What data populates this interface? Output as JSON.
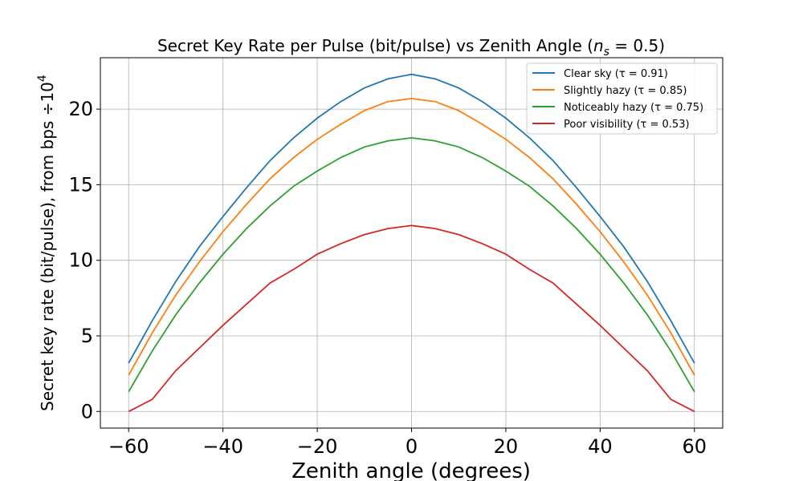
{
  "chart_data": {
    "type": "line",
    "title": "Secret Key Rate per Pulse (bit/pulse) vs Zenith Angle (",
    "title_math_var": "n",
    "title_math_sub": "s",
    "title_math_rest": " = 0.5)",
    "xlabel": "Zenith angle (degrees)",
    "ylabel": "Secret key rate (bit/pulse), from bps ÷10",
    "ylabel_sup": "4",
    "xlim": [
      -66,
      66
    ],
    "ylim": [
      -1.1,
      23.4
    ],
    "xticks": [
      -60,
      -40,
      -20,
      0,
      20,
      40,
      60
    ],
    "xtick_labels": [
      "−60",
      "−40",
      "−20",
      "0",
      "20",
      "40",
      "60"
    ],
    "yticks": [
      0,
      5,
      10,
      15,
      20
    ],
    "ytick_labels": [
      "0",
      "5",
      "10",
      "15",
      "20"
    ],
    "grid": true,
    "legend_position": "top-right",
    "x": [
      -60,
      -55,
      -50,
      -45,
      -40,
      -35,
      -30,
      -25,
      -20,
      -15,
      -10,
      -5,
      0,
      5,
      10,
      15,
      20,
      25,
      30,
      35,
      40,
      45,
      50,
      55,
      60
    ],
    "series": [
      {
        "name": "Clear sky (τ = 0.91)",
        "color": "#1f77b4",
        "values": [
          3.2,
          6.0,
          8.6,
          10.9,
          12.9,
          14.8,
          16.6,
          18.1,
          19.4,
          20.5,
          21.4,
          22.0,
          22.3,
          22.0,
          21.4,
          20.5,
          19.4,
          18.1,
          16.6,
          14.8,
          12.9,
          10.9,
          8.6,
          6.0,
          3.2
        ]
      },
      {
        "name": "Slightly hazy (τ = 0.85)",
        "color": "#ff7f0e",
        "values": [
          2.4,
          5.2,
          7.7,
          9.9,
          11.9,
          13.7,
          15.4,
          16.8,
          18.0,
          19.0,
          19.9,
          20.5,
          20.7,
          20.5,
          19.9,
          19.0,
          18.0,
          16.8,
          15.4,
          13.7,
          11.9,
          9.9,
          7.7,
          5.2,
          2.4
        ]
      },
      {
        "name": "Noticeably hazy (τ = 0.75)",
        "color": "#2ca02c",
        "values": [
          1.3,
          4.0,
          6.4,
          8.5,
          10.4,
          12.1,
          13.6,
          14.9,
          15.9,
          16.8,
          17.5,
          17.9,
          18.1,
          17.9,
          17.5,
          16.8,
          15.9,
          14.9,
          13.6,
          12.1,
          10.4,
          8.5,
          6.4,
          4.0,
          1.3
        ]
      },
      {
        "name": "Poor visibility (τ = 0.53)",
        "color": "#d62728",
        "values": [
          0.0,
          0.8,
          2.7,
          4.2,
          5.7,
          7.1,
          8.5,
          9.4,
          10.4,
          11.1,
          11.7,
          12.1,
          12.3,
          12.1,
          11.7,
          11.1,
          10.4,
          9.4,
          8.5,
          7.1,
          5.7,
          4.2,
          2.7,
          0.8,
          0.0
        ]
      }
    ]
  }
}
